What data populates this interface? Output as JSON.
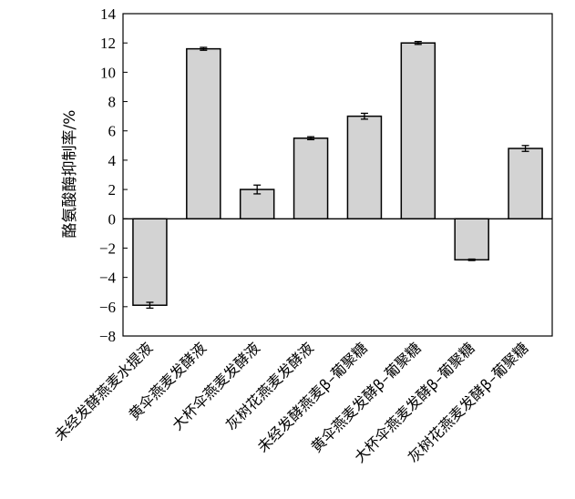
{
  "chart_data": {
    "type": "bar",
    "ylabel": "酪氨酸酶抑制率/%",
    "xlabel": "",
    "ylim": [
      -8,
      14
    ],
    "yticks": [
      -8,
      -6,
      -4,
      -2,
      0,
      2,
      4,
      6,
      8,
      10,
      12,
      14
    ],
    "ytick_labels": [
      "−8",
      "−6",
      "−4",
      "−2",
      "0",
      "2",
      "4",
      "6",
      "8",
      "10",
      "12",
      "14"
    ],
    "categories": [
      "未经发酵燕麦水提液",
      "黄伞燕麦发酵液",
      "大杯伞燕麦发酵液",
      "灰树花燕麦发酵液",
      "未经发酵燕麦β–葡聚糖",
      "黄伞燕麦发酵β–葡聚糖",
      "大杯伞燕麦发酵β–葡聚糖",
      "灰树花燕麦发酵β–葡聚糖"
    ],
    "values": [
      -5.9,
      11.6,
      2.0,
      5.5,
      7.0,
      12.0,
      -2.8,
      4.8
    ],
    "errors": [
      0.2,
      0.1,
      0.3,
      0.1,
      0.2,
      0.1,
      0.05,
      0.2
    ],
    "bar_color": "#d3d3d3",
    "edge_color": "#000000",
    "grid": false
  }
}
